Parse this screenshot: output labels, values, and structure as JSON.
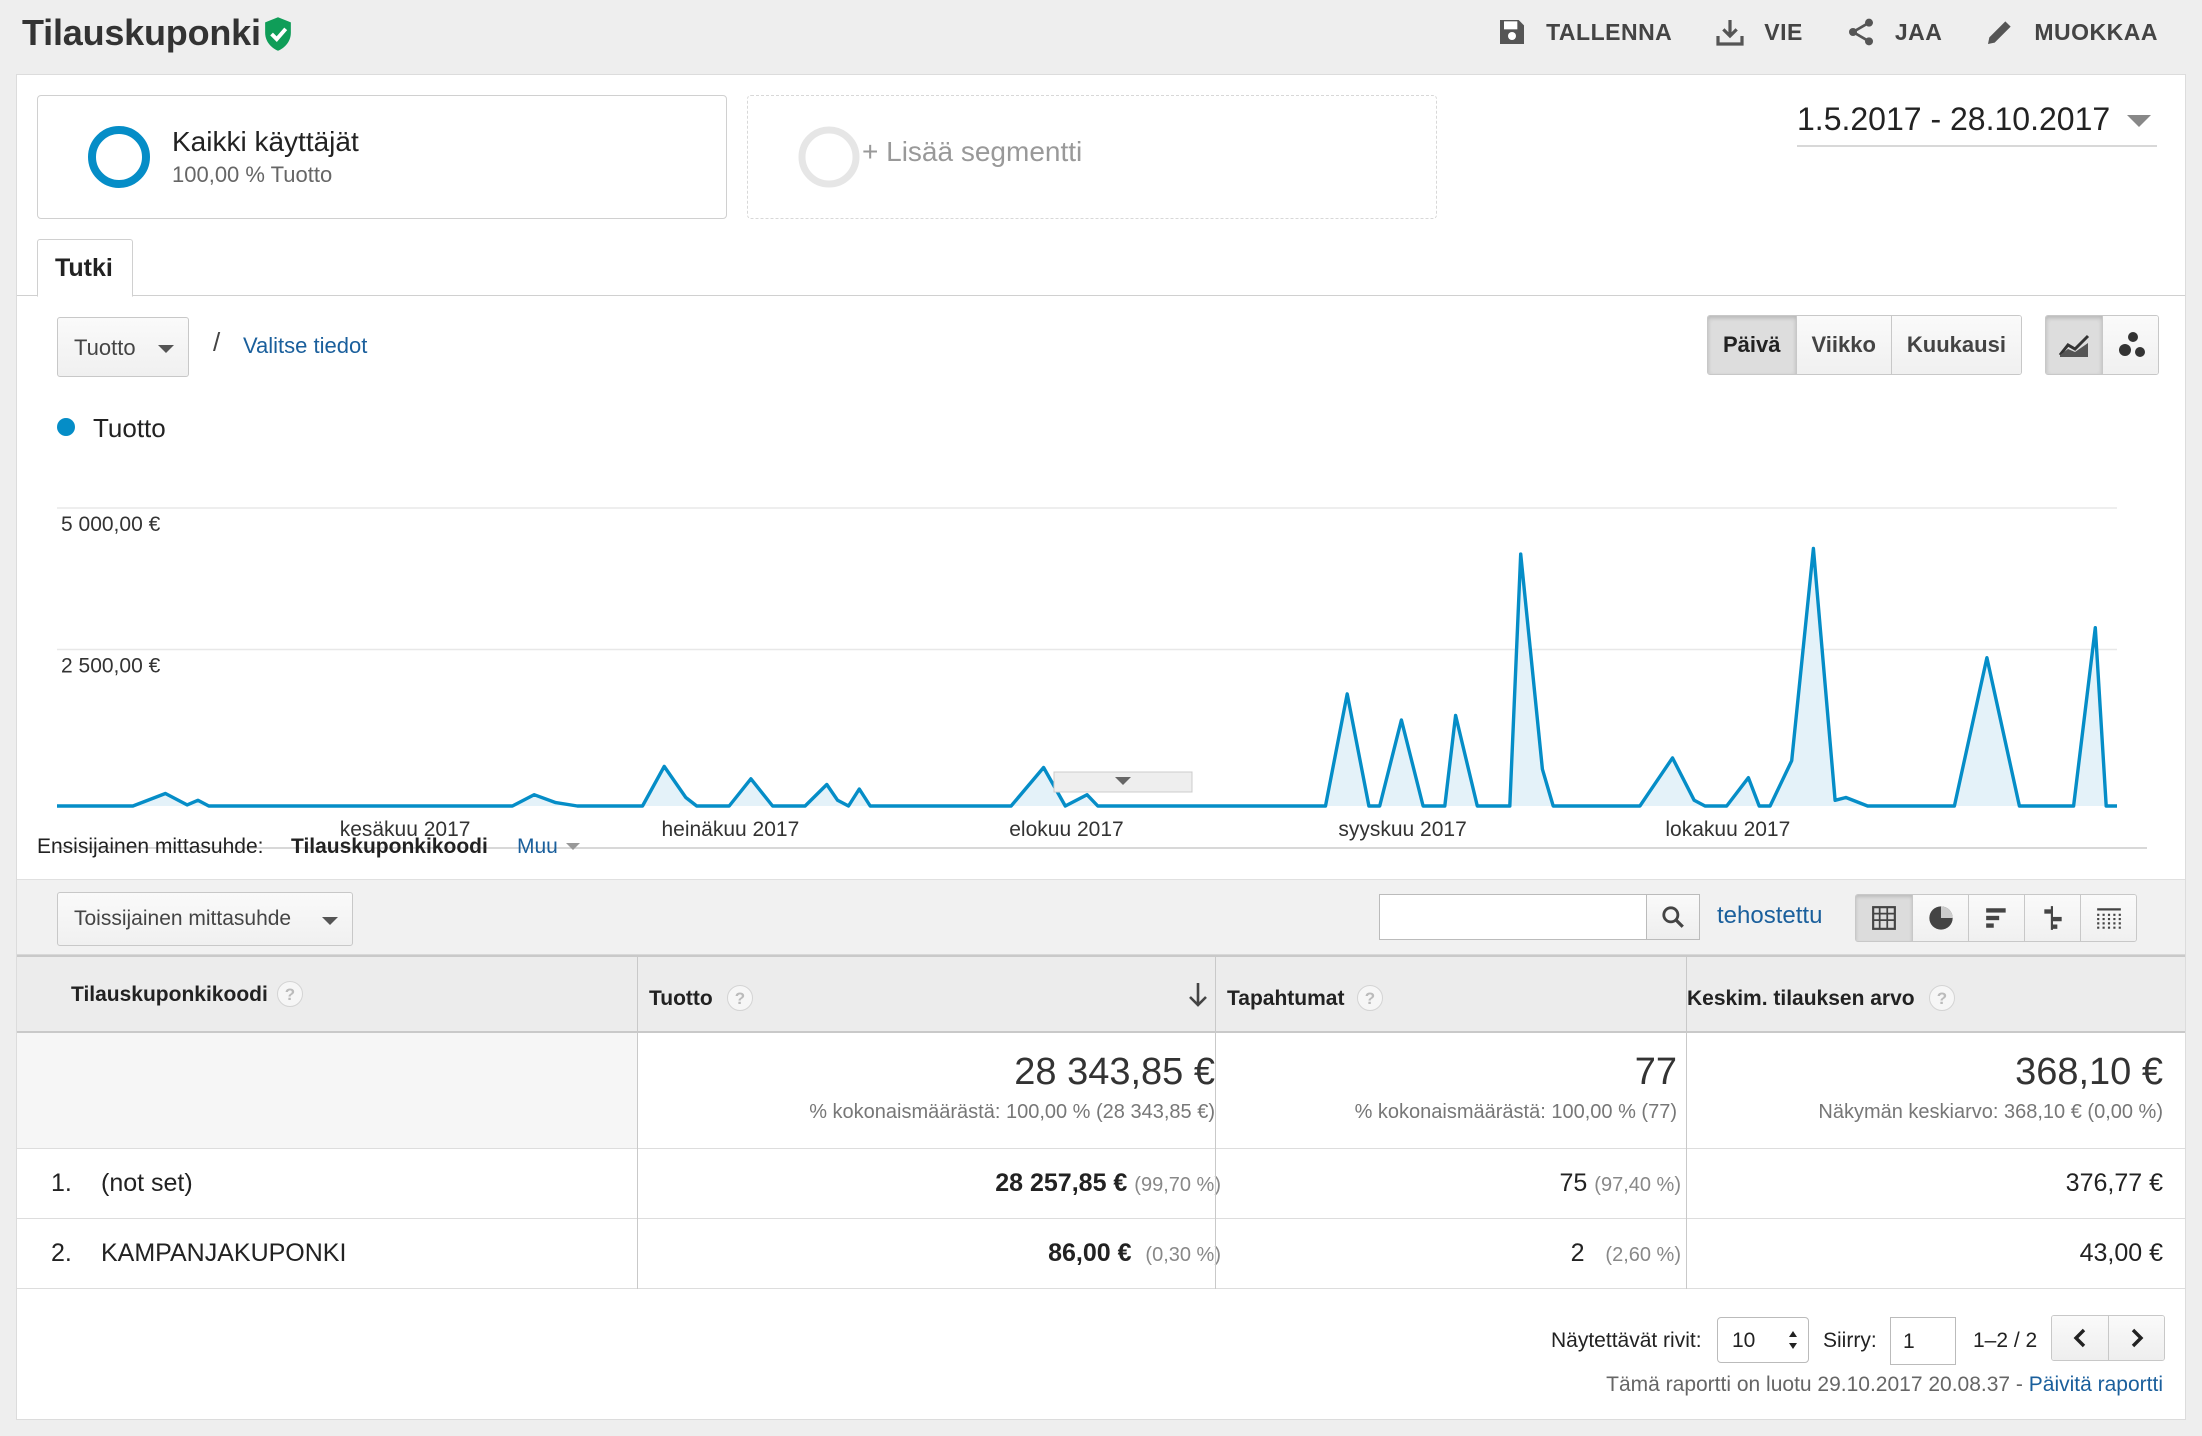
{
  "header": {
    "title": "Tilauskuponki",
    "actions": {
      "save": "TALLENNA",
      "export": "VIE",
      "share": "JAA",
      "edit": "MUOKKAA"
    }
  },
  "segments": {
    "active": {
      "name": "Kaikki käyttäjät",
      "sub": "100,00 % Tuotto"
    },
    "add": "+ Lisää segmentti"
  },
  "date_range": "1.5.2017 - 28.10.2017",
  "tabs": [
    "Tutki"
  ],
  "chart_controls": {
    "metric": "Tuotto",
    "slash": "/",
    "select_metric": "Valitse tiedot",
    "periods": [
      "Päivä",
      "Viikko",
      "Kuukausi"
    ],
    "active_period": "Päivä"
  },
  "chart_data": {
    "type": "area",
    "series": [
      {
        "name": "Tuotto",
        "color": "#058dc7",
        "points": [
          {
            "x": "2017-05-08",
            "y": 0
          },
          {
            "x": "2017-05-11",
            "y": 220
          },
          {
            "x": "2017-05-13",
            "y": 20
          },
          {
            "x": "2017-05-14",
            "y": 100
          },
          {
            "x": "2017-05-15",
            "y": 0
          },
          {
            "x": "2017-06-12",
            "y": 0
          },
          {
            "x": "2017-06-14",
            "y": 200
          },
          {
            "x": "2017-06-16",
            "y": 60
          },
          {
            "x": "2017-06-18",
            "y": 0
          },
          {
            "x": "2017-06-24",
            "y": 0
          },
          {
            "x": "2017-06-26",
            "y": 700
          },
          {
            "x": "2017-06-28",
            "y": 150
          },
          {
            "x": "2017-06-29",
            "y": 0
          },
          {
            "x": "2017-07-02",
            "y": 0
          },
          {
            "x": "2017-07-04",
            "y": 480
          },
          {
            "x": "2017-07-06",
            "y": 0
          },
          {
            "x": "2017-07-09",
            "y": 0
          },
          {
            "x": "2017-07-11",
            "y": 380
          },
          {
            "x": "2017-07-12",
            "y": 100
          },
          {
            "x": "2017-07-13",
            "y": 0
          },
          {
            "x": "2017-07-14",
            "y": 300
          },
          {
            "x": "2017-07-15",
            "y": 0
          },
          {
            "x": "2017-07-28",
            "y": 0
          },
          {
            "x": "2017-07-31",
            "y": 680
          },
          {
            "x": "2017-08-02",
            "y": 0
          },
          {
            "x": "2017-08-04",
            "y": 200
          },
          {
            "x": "2017-08-05",
            "y": 0
          },
          {
            "x": "2017-08-26",
            "y": 0
          },
          {
            "x": "2017-08-28",
            "y": 1980
          },
          {
            "x": "2017-08-30",
            "y": 0
          },
          {
            "x": "2017-08-31",
            "y": 0
          },
          {
            "x": "2017-09-02",
            "y": 1520
          },
          {
            "x": "2017-09-04",
            "y": 0
          },
          {
            "x": "2017-09-06",
            "y": 0
          },
          {
            "x": "2017-09-07",
            "y": 1600
          },
          {
            "x": "2017-09-09",
            "y": 0
          },
          {
            "x": "2017-09-12",
            "y": 0
          },
          {
            "x": "2017-09-13",
            "y": 4450
          },
          {
            "x": "2017-09-15",
            "y": 650
          },
          {
            "x": "2017-09-16",
            "y": 0
          },
          {
            "x": "2017-09-24",
            "y": 0
          },
          {
            "x": "2017-09-27",
            "y": 850
          },
          {
            "x": "2017-09-29",
            "y": 100
          },
          {
            "x": "2017-09-30",
            "y": 0
          },
          {
            "x": "2017-10-02",
            "y": 0
          },
          {
            "x": "2017-10-04",
            "y": 500
          },
          {
            "x": "2017-10-05",
            "y": 0
          },
          {
            "x": "2017-10-06",
            "y": 0
          },
          {
            "x": "2017-10-08",
            "y": 800
          },
          {
            "x": "2017-10-10",
            "y": 4550
          },
          {
            "x": "2017-10-12",
            "y": 100
          },
          {
            "x": "2017-10-13",
            "y": 150
          },
          {
            "x": "2017-10-15",
            "y": 0
          },
          {
            "x": "2017-10-23",
            "y": 0
          },
          {
            "x": "2017-10-26",
            "y": 2620
          },
          {
            "x": "2017-10-29",
            "y": 0
          },
          {
            "x": "2017-11-03",
            "y": 0
          },
          {
            "x": "2017-11-05",
            "y": 3150
          },
          {
            "x": "2017-11-06",
            "y": 0
          }
        ]
      }
    ],
    "legend": "Tuotto",
    "y_ticks": [
      "5 000,00 €",
      "2 500,00 €"
    ],
    "ylim": [
      0,
      5000
    ],
    "x_ticks": [
      "kesäkuu 2017",
      "heinäkuu 2017",
      "elokuu 2017",
      "syyskuu 2017",
      "lokakuu 2017"
    ],
    "grid": true,
    "legend_position": "top-left"
  },
  "dimension": {
    "label": "Ensisijainen mittasuhde:",
    "current": "Tilauskuponkikoodi",
    "other": "Muu"
  },
  "toolbar": {
    "secondary_dimension": "Toissijainen mittasuhde",
    "search_value": "",
    "advanced": "tehostettu"
  },
  "table": {
    "headers": {
      "dim": "Tilauskuponkikoodi",
      "revenue": "Tuotto",
      "transactions": "Tapahtumat",
      "aov": "Keskim. tilauksen arvo"
    },
    "help": "?",
    "totals": {
      "revenue": "28 343,85 €",
      "revenue_sub": "% kokonaismäärästä: 100,00 % (28 343,85 €)",
      "transactions": "77",
      "transactions_sub": "% kokonaismäärästä: 100,00 % (77)",
      "aov": "368,10 €",
      "aov_sub": "Näkymän keskiarvo: 368,10 € (0,00 %)"
    },
    "rows": [
      {
        "n": "1.",
        "name": "(not set)",
        "revenue": "28 257,85 €",
        "revenue_pct": "(99,70 %)",
        "transactions": "75",
        "transactions_pct": "(97,40 %)",
        "aov": "376,77 €"
      },
      {
        "n": "2.",
        "name": "KAMPANJAKUPONKI",
        "revenue": "86,00 €",
        "revenue_pct": "(0,30 %)",
        "transactions": "2",
        "transactions_pct": "(2,60 %)",
        "aov": "43,00 €"
      }
    ]
  },
  "pagination": {
    "rows_label": "Näytettävät rivit:",
    "rows_value": "10",
    "goto_label": "Siirry:",
    "goto_value": "1",
    "range": "1–2 / 2"
  },
  "footer": {
    "note": "Tämä raportti on luotu 29.10.2017 20.08.37 - ",
    "refresh": "Päivitä raportti"
  },
  "colors": {
    "accent": "#058dc7",
    "link": "#1a5f9c",
    "verified": "#0f9d58"
  }
}
